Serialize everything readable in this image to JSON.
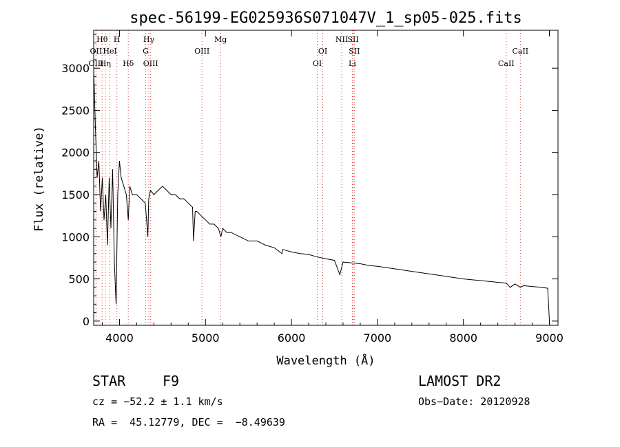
{
  "chart_data": {
    "type": "line",
    "title": "spec-56199-EG025936S071047V_1_sp05-025.fits",
    "xlabel": "Wavelength (Å)",
    "ylabel": "Flux (relative)",
    "xlim": [
      3700,
      9100
    ],
    "ylim": [
      -50,
      3450
    ],
    "xticks": [
      4000,
      5000,
      6000,
      7000,
      8000,
      9000
    ],
    "yticks": [
      0,
      500,
      1000,
      1500,
      2000,
      2500,
      3000
    ],
    "series": [
      {
        "name": "flux",
        "x": [
          3700,
          3720,
          3740,
          3760,
          3780,
          3800,
          3820,
          3840,
          3860,
          3880,
          3900,
          3920,
          3940,
          3960,
          3980,
          4000,
          4020,
          4050,
          4080,
          4102,
          4120,
          4150,
          4200,
          4250,
          4300,
          4330,
          4340,
          4360,
          4400,
          4450,
          4500,
          4550,
          4600,
          4650,
          4700,
          4750,
          4800,
          4850,
          4861,
          4880,
          4900,
          4950,
          5000,
          5050,
          5100,
          5150,
          5180,
          5200,
          5250,
          5300,
          5400,
          5500,
          5600,
          5700,
          5800,
          5890,
          5900,
          6000,
          6100,
          6200,
          6300,
          6400,
          6500,
          6563,
          6600,
          6700,
          6800,
          6900,
          7000,
          7200,
          7400,
          7600,
          7800,
          8000,
          8200,
          8400,
          8500,
          8542,
          8600,
          8662,
          8700,
          8800,
          8900,
          8980,
          8990,
          9000
        ],
        "y": [
          3000,
          2300,
          1700,
          1900,
          1300,
          1700,
          1200,
          1500,
          900,
          1700,
          1100,
          1800,
          700,
          200,
          1500,
          1900,
          1700,
          1600,
          1500,
          1200,
          1600,
          1500,
          1500,
          1450,
          1400,
          1000,
          1450,
          1550,
          1500,
          1550,
          1600,
          1550,
          1500,
          1500,
          1450,
          1450,
          1400,
          1350,
          950,
          1300,
          1300,
          1250,
          1200,
          1150,
          1150,
          1100,
          1000,
          1100,
          1050,
          1050,
          1000,
          950,
          950,
          900,
          870,
          800,
          850,
          820,
          800,
          790,
          760,
          740,
          720,
          550,
          700,
          690,
          680,
          660,
          650,
          620,
          590,
          560,
          530,
          500,
          480,
          460,
          450,
          400,
          440,
          400,
          420,
          410,
          400,
          390,
          200,
          0
        ]
      }
    ],
    "spectral_lines": [
      {
        "label": "Hθ",
        "wl": 3798,
        "row": 1
      },
      {
        "label": "OII",
        "wl": 3727,
        "row": 2
      },
      {
        "label": "OIII",
        "wl": 3727,
        "row": 3
      },
      {
        "label": "Hη",
        "wl": 3835,
        "row": 3
      },
      {
        "label": "HeI",
        "wl": 3889,
        "row": 2
      },
      {
        "label": "H",
        "wl": 3970,
        "row": 1
      },
      {
        "label": "Hδ",
        "wl": 4102,
        "row": 3
      },
      {
        "label": "Hγ",
        "wl": 4341,
        "row": 1
      },
      {
        "label": "G",
        "wl": 4305,
        "row": 2
      },
      {
        "label": "OIII",
        "wl": 4363,
        "row": 3
      },
      {
        "label": "OIII",
        "wl": 4959,
        "row": 2
      },
      {
        "label": "Mg",
        "wl": 5175,
        "row": 1
      },
      {
        "label": "OI",
        "wl": 6364,
        "row": 2
      },
      {
        "label": "OI",
        "wl": 6300,
        "row": 3
      },
      {
        "label": "NII",
        "wl": 6585,
        "row": 1
      },
      {
        "label": "SII",
        "wl": 6717,
        "row": 1
      },
      {
        "label": "SII",
        "wl": 6731,
        "row": 2
      },
      {
        "label": "Li",
        "wl": 6708,
        "row": 3
      },
      {
        "label": "CaII",
        "wl": 8662,
        "row": 2
      },
      {
        "label": "CaII",
        "wl": 8498,
        "row": 3
      }
    ]
  },
  "info": {
    "object_class": "STAR",
    "subclass": "F9",
    "survey": "LAMOST DR2",
    "cz": "cz = −52.2 ± 1.1 km/s",
    "obs_date": "Obs−Date: 20120928",
    "coords": "RA =  45.12779, DEC =  −8.49639"
  }
}
